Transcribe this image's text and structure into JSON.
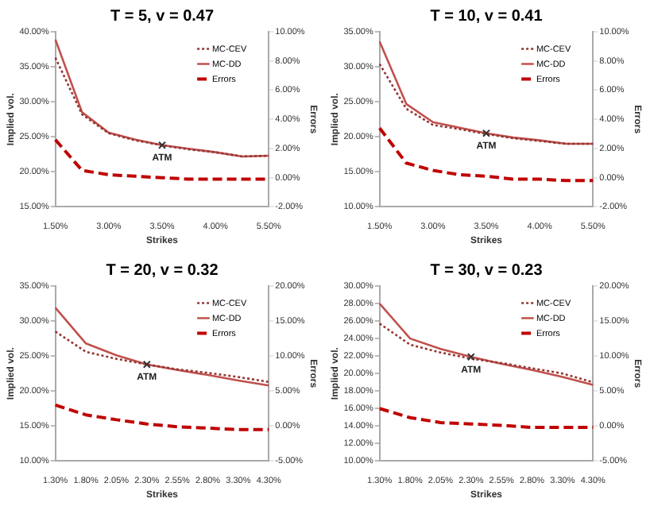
{
  "chart_data": [
    {
      "type": "line",
      "title": "T = 5, v = 0.47",
      "xlabel": "Strikes",
      "ylabel": "Implied vol.",
      "y2label": "Errors",
      "legend": "top right",
      "grid": false,
      "categories": [
        "1.50%",
        null,
        "3.00%",
        null,
        "3.50%",
        null,
        "4.00%",
        null,
        "5.50%"
      ],
      "ylim": [
        15,
        40
      ],
      "yticks": [
        {
          "value": 15,
          "label": "15.00%"
        },
        {
          "value": 20,
          "label": "20.00%"
        },
        {
          "value": 25,
          "label": "25.00%"
        },
        {
          "value": 30,
          "label": "30.00%"
        },
        {
          "value": 35,
          "label": "35.00%"
        },
        {
          "value": 40,
          "label": "40.00%"
        }
      ],
      "y2lim": [
        -2,
        10
      ],
      "y2ticks": [
        {
          "value": -2,
          "label": "-2.00%"
        },
        {
          "value": 0,
          "label": "0.00%"
        },
        {
          "value": 2,
          "label": "2.00%"
        },
        {
          "value": 4,
          "label": "4.00%"
        },
        {
          "value": 6,
          "label": "6.00%"
        },
        {
          "value": 8,
          "label": "8.00%"
        },
        {
          "value": 10,
          "label": "10.00%"
        }
      ],
      "series": [
        {
          "name": "MC-CEV",
          "color": "#943634",
          "line_style": "dotted",
          "values": [
            36.3,
            28.2,
            25.5,
            24.5,
            23.8,
            23.2,
            22.8,
            22.2,
            22.3
          ]
        },
        {
          "name": "MC-DD",
          "color": "#c0504d",
          "line_style": "solid",
          "values": [
            38.9,
            28.5,
            25.6,
            24.6,
            23.8,
            23.3,
            22.8,
            22.2,
            22.3
          ]
        },
        {
          "name": "Errors",
          "color": "#c00000",
          "line_style": "dashed",
          "axis": "y2",
          "values": [
            2.6,
            0.5,
            0.2,
            0.1,
            0.0,
            -0.1,
            -0.1,
            -0.1,
            -0.1
          ]
        }
      ],
      "annotations": [
        {
          "text": "ATM",
          "x": "3.50%",
          "y": 23.8
        }
      ]
    },
    {
      "type": "line",
      "title": "T = 10, v = 0.41",
      "xlabel": "Strikes",
      "ylabel": "Implied vol.",
      "y2label": "Errors",
      "legend": "top right",
      "grid": false,
      "categories": [
        "1.50%",
        null,
        "3.00%",
        null,
        "3.50%",
        null,
        "4.00%",
        null,
        "5.50%"
      ],
      "ylim": [
        10,
        35
      ],
      "yticks": [
        {
          "value": 10,
          "label": "10.00%"
        },
        {
          "value": 15,
          "label": "15.00%"
        },
        {
          "value": 20,
          "label": "20.00%"
        },
        {
          "value": 25,
          "label": "25.00%"
        },
        {
          "value": 30,
          "label": "30.00%"
        },
        {
          "value": 35,
          "label": "35.00%"
        }
      ],
      "y2lim": [
        -2,
        10
      ],
      "y2ticks": [
        {
          "value": -2,
          "label": "-2.00%"
        },
        {
          "value": 0,
          "label": "0.00%"
        },
        {
          "value": 2,
          "label": "2.00%"
        },
        {
          "value": 4,
          "label": "4.00%"
        },
        {
          "value": 6,
          "label": "6.00%"
        },
        {
          "value": 8,
          "label": "8.00%"
        },
        {
          "value": 10,
          "label": "10.00%"
        }
      ],
      "series": [
        {
          "name": "MC-CEV",
          "color": "#943634",
          "line_style": "dotted",
          "values": [
            30.4,
            24.0,
            21.7,
            21.1,
            20.4,
            19.8,
            19.4,
            19.0,
            19.0
          ]
        },
        {
          "name": "MC-DD",
          "color": "#c0504d",
          "line_style": "solid",
          "values": [
            33.6,
            24.7,
            22.1,
            21.3,
            20.5,
            19.9,
            19.5,
            19.0,
            19.0
          ]
        },
        {
          "name": "Errors",
          "color": "#c00000",
          "line_style": "dashed",
          "axis": "y2",
          "values": [
            3.4,
            1.0,
            0.5,
            0.2,
            0.1,
            -0.1,
            -0.1,
            -0.2,
            -0.2
          ]
        }
      ],
      "annotations": [
        {
          "text": "ATM",
          "x": "3.50%",
          "y": 20.5
        }
      ]
    },
    {
      "type": "line",
      "title": "T = 20, v = 0.32",
      "xlabel": "Strikes",
      "ylabel": "Implied vol.",
      "y2label": "Errors",
      "legend": "top right",
      "grid": false,
      "categories": [
        "1.30%",
        "1.80%",
        "2.05%",
        "2.30%",
        "2.55%",
        "2.80%",
        "3.30%",
        "4.30%"
      ],
      "ylim": [
        10,
        35
      ],
      "yticks": [
        {
          "value": 10,
          "label": "10.00%"
        },
        {
          "value": 15,
          "label": "15.00%"
        },
        {
          "value": 20,
          "label": "20.00%"
        },
        {
          "value": 25,
          "label": "25.00%"
        },
        {
          "value": 30,
          "label": "30.00%"
        },
        {
          "value": 35,
          "label": "35.00%"
        }
      ],
      "y2lim": [
        -5,
        20
      ],
      "y2ticks": [
        {
          "value": -5,
          "label": "-5.00%"
        },
        {
          "value": 0,
          "label": "0.00%"
        },
        {
          "value": 5,
          "label": "5.00%"
        },
        {
          "value": 10,
          "label": "10.00%"
        },
        {
          "value": 15,
          "label": "15.00%"
        },
        {
          "value": 20,
          "label": "20.00%"
        }
      ],
      "series": [
        {
          "name": "MC-CEV",
          "color": "#943634",
          "line_style": "dotted",
          "values": [
            28.5,
            25.6,
            24.6,
            23.8,
            23.1,
            22.6,
            22.0,
            21.3
          ]
        },
        {
          "name": "MC-DD",
          "color": "#c0504d",
          "line_style": "solid",
          "values": [
            31.9,
            26.8,
            25.1,
            23.8,
            23.0,
            22.3,
            21.5,
            20.8
          ]
        },
        {
          "name": "Errors",
          "color": "#c00000",
          "line_style": "dashed",
          "axis": "y2",
          "values": [
            3.0,
            1.6,
            0.9,
            0.3,
            -0.1,
            -0.3,
            -0.5,
            -0.5
          ]
        }
      ],
      "annotations": [
        {
          "text": "ATM",
          "x": "2.30%",
          "y": 23.8
        }
      ]
    },
    {
      "type": "line",
      "title": "T = 30, v = 0.23",
      "xlabel": "Strikes",
      "ylabel": "Implied vol.",
      "y2label": "Errors",
      "legend": "top right",
      "grid": false,
      "categories": [
        "1.30%",
        "1.80%",
        "2.05%",
        "2.30%",
        "2.55%",
        "2.80%",
        "3.30%",
        "4.30%"
      ],
      "ylim": [
        10,
        30
      ],
      "yticks": [
        {
          "value": 10,
          "label": "10.00%"
        },
        {
          "value": 12,
          "label": "12.00%"
        },
        {
          "value": 14,
          "label": "14.00%"
        },
        {
          "value": 16,
          "label": "16.00%"
        },
        {
          "value": 18,
          "label": "18.00%"
        },
        {
          "value": 20,
          "label": "20.00%"
        },
        {
          "value": 22,
          "label": "22.00%"
        },
        {
          "value": 24,
          "label": "24.00%"
        },
        {
          "value": 26,
          "label": "26.00%"
        },
        {
          "value": 28,
          "label": "28.00%"
        },
        {
          "value": 30,
          "label": "30.00%"
        }
      ],
      "y2lim": [
        -5,
        20
      ],
      "y2ticks": [
        {
          "value": -5,
          "label": "-5.00%"
        },
        {
          "value": 0,
          "label": "0.00%"
        },
        {
          "value": 5,
          "label": "5.00%"
        },
        {
          "value": 10,
          "label": "10.00%"
        },
        {
          "value": 15,
          "label": "15.00%"
        },
        {
          "value": 20,
          "label": "20.00%"
        }
      ],
      "series": [
        {
          "name": "MC-CEV",
          "color": "#943634",
          "line_style": "dotted",
          "values": [
            25.7,
            23.3,
            22.4,
            21.7,
            21.2,
            20.6,
            20.0,
            19.0
          ]
        },
        {
          "name": "MC-DD",
          "color": "#c0504d",
          "line_style": "solid",
          "values": [
            28.0,
            24.0,
            22.8,
            21.9,
            21.1,
            20.4,
            19.6,
            18.7
          ]
        },
        {
          "name": "Errors",
          "color": "#c00000",
          "line_style": "dashed",
          "axis": "y2",
          "values": [
            2.5,
            1.2,
            0.5,
            0.3,
            0.1,
            -0.2,
            -0.2,
            -0.2
          ]
        }
      ],
      "annotations": [
        {
          "text": "ATM",
          "x": "2.30%",
          "y": 21.9
        }
      ]
    }
  ]
}
